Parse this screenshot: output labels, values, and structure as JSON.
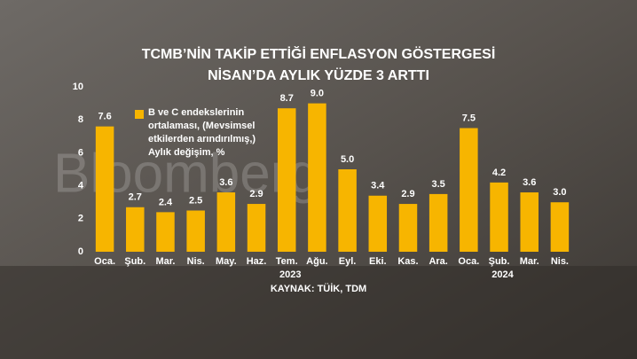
{
  "chart_data": {
    "type": "bar",
    "title": [
      "TCMB’NİN TAKİP ETTİĞİ ENFLASYON GÖSTERGESİ",
      "NİSAN’DA AYLIK YÜZDE 3 ARTTI"
    ],
    "categories": [
      "Oca.",
      "Şub.",
      "Mar.",
      "Nis.",
      "May.",
      "Haz.",
      "Tem.",
      "Ağu.",
      "Eyl.",
      "Eki.",
      "Kas.",
      "Ara.",
      "Oca.",
      "Şub.",
      "Mar.",
      "Nis."
    ],
    "years": [
      null,
      null,
      null,
      null,
      null,
      null,
      "2023",
      null,
      null,
      null,
      null,
      null,
      null,
      "2024",
      null,
      null
    ],
    "series": [
      {
        "name": "B ve C endekslerinin ortalaması, (Mevsimsel etkilerden arındırılmış,) Aylık değişim, %",
        "color": "#f7b500",
        "values": [
          7.6,
          2.7,
          2.4,
          2.5,
          3.6,
          2.9,
          8.7,
          9.0,
          5.0,
          3.4,
          2.9,
          3.5,
          7.5,
          4.2,
          3.6,
          3.0
        ],
        "value_labels": [
          "7.6",
          "2.7",
          "2.4",
          "2.5",
          "3.6",
          "2.9",
          "8.7",
          "9.0",
          "5.0",
          "3.4",
          "2.9",
          "3.5",
          "7.5",
          "4.2",
          "3.6",
          "3.0"
        ]
      }
    ],
    "ylim": [
      0,
      10
    ],
    "yticks": [
      0,
      2,
      4,
      6,
      8,
      10
    ],
    "grid": false,
    "source": "KAYNAK: TÜİK, TDM",
    "watermark": "Bloomberg"
  }
}
